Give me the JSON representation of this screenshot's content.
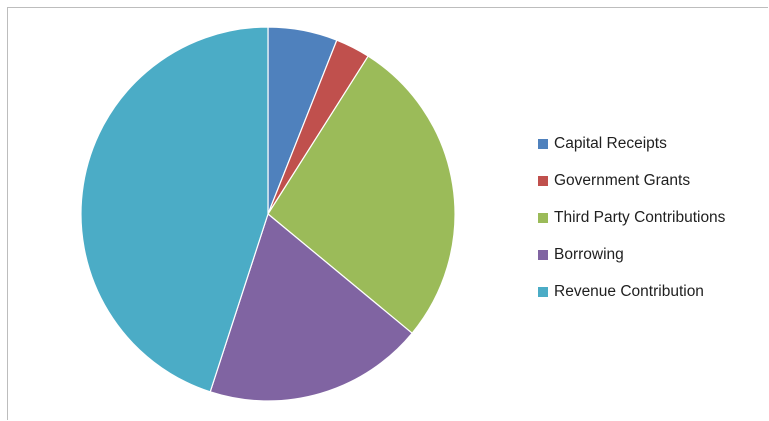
{
  "chart_data": {
    "type": "pie",
    "title": "",
    "series": [
      {
        "categories": [
          "Capital Receipts",
          "Government Grants",
          "Third Party Contributions",
          "Borrowing",
          "Revenue Contribution"
        ],
        "values": [
          6,
          3,
          27,
          19,
          45
        ],
        "colors": [
          "#4f81bd",
          "#c0504d",
          "#9bbb59",
          "#8064a2",
          "#4bacc6"
        ]
      }
    ],
    "legend_position": "right",
    "value_units": "percent (estimated share of whole)"
  }
}
